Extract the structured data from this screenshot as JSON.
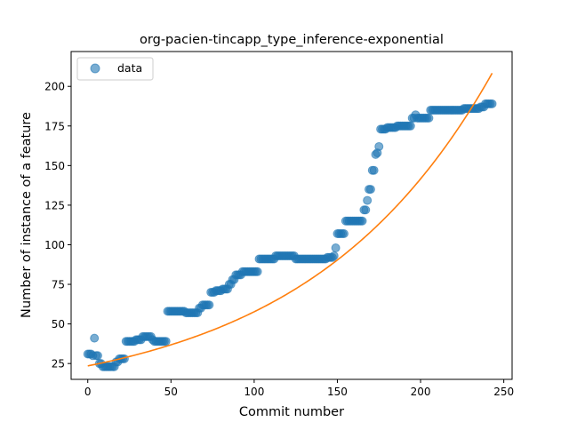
{
  "chart_data": {
    "type": "scatter",
    "title": "org-pacien-tincapp_type_inference-exponential",
    "xlabel": "Commit number",
    "ylabel": "Number of instance of a feature",
    "xlim": [
      -10,
      255
    ],
    "ylim": [
      15,
      222
    ],
    "xticks": [
      0,
      50,
      100,
      150,
      200,
      250
    ],
    "yticks": [
      25,
      50,
      75,
      100,
      125,
      150,
      175,
      200
    ],
    "grid": false,
    "legend": {
      "placement": "top-left",
      "entries": [
        "data"
      ]
    },
    "colors": {
      "data": "#1f77b4",
      "fit": "#ff7f0e"
    },
    "segments": [
      [
        0,
        2,
        31
      ],
      [
        3,
        3,
        30
      ],
      [
        4,
        4,
        41
      ],
      [
        5,
        6,
        30
      ],
      [
        7,
        8,
        25
      ],
      [
        9,
        16,
        23
      ],
      [
        17,
        18,
        26
      ],
      [
        19,
        22,
        28
      ],
      [
        23,
        28,
        39
      ],
      [
        29,
        32,
        40
      ],
      [
        33,
        36,
        42
      ],
      [
        37,
        38,
        42
      ],
      [
        39,
        39,
        40
      ],
      [
        40,
        47,
        39
      ],
      [
        48,
        58,
        58
      ],
      [
        59,
        66,
        57
      ],
      [
        67,
        68,
        60
      ],
      [
        69,
        73,
        62
      ],
      [
        74,
        76,
        70
      ],
      [
        77,
        80,
        71
      ],
      [
        81,
        84,
        72
      ],
      [
        85,
        86,
        75
      ],
      [
        87,
        88,
        78
      ],
      [
        89,
        92,
        81
      ],
      [
        93,
        102,
        83
      ],
      [
        103,
        112,
        91
      ],
      [
        113,
        124,
        93
      ],
      [
        125,
        143,
        91
      ],
      [
        144,
        147,
        92
      ],
      [
        148,
        148,
        93
      ],
      [
        149,
        149,
        98
      ],
      [
        150,
        154,
        107
      ],
      [
        155,
        165,
        115
      ],
      [
        166,
        167,
        122
      ],
      [
        168,
        168,
        128
      ],
      [
        169,
        170,
        135
      ],
      [
        171,
        172,
        147
      ],
      [
        173,
        173,
        157
      ],
      [
        174,
        174,
        158
      ],
      [
        175,
        175,
        162
      ],
      [
        176,
        179,
        173
      ],
      [
        180,
        185,
        174
      ],
      [
        186,
        194,
        175
      ],
      [
        195,
        196,
        180
      ],
      [
        197,
        197,
        182
      ],
      [
        198,
        205,
        180
      ],
      [
        206,
        225,
        185
      ],
      [
        226,
        235,
        186
      ],
      [
        236,
        238,
        187
      ],
      [
        239,
        243,
        189
      ]
    ],
    "fit": {
      "kind": "exponential",
      "a": 23.5,
      "b": 0.00898,
      "x_range": [
        0,
        243
      ]
    }
  }
}
